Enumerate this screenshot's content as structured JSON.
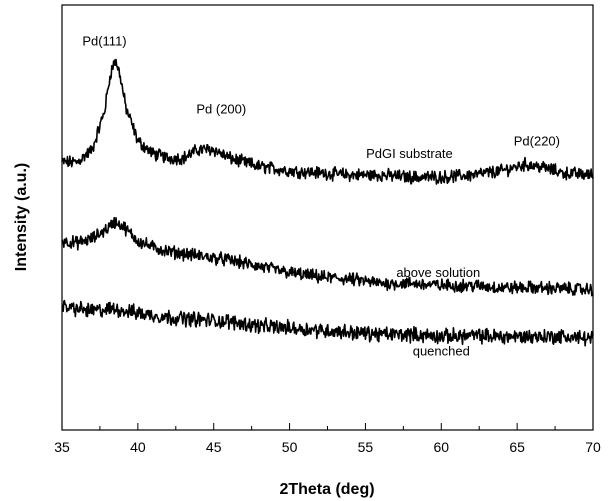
{
  "chart_data": {
    "type": "line",
    "title": "",
    "xlabel": "2Theta (deg)",
    "ylabel": "Intensity (a.u.)",
    "xlim": [
      35,
      70
    ],
    "ylim": [
      0,
      1
    ],
    "x_ticks": [
      35,
      40,
      45,
      50,
      55,
      60,
      65,
      70
    ],
    "y_ticks": [],
    "grid": false,
    "legend": "none",
    "line_color": "#000000",
    "series": [
      {
        "name": "PdGI substrate",
        "points": [
          [
            35,
            0.63
          ],
          [
            36,
            0.63
          ],
          [
            37,
            0.66
          ],
          [
            37.8,
            0.75
          ],
          [
            38.2,
            0.84
          ],
          [
            38.5,
            0.87
          ],
          [
            38.8,
            0.84
          ],
          [
            39.2,
            0.76
          ],
          [
            40,
            0.68
          ],
          [
            41,
            0.65
          ],
          [
            42,
            0.64
          ],
          [
            43,
            0.64
          ],
          [
            44,
            0.66
          ],
          [
            45,
            0.66
          ],
          [
            46,
            0.64
          ],
          [
            48,
            0.62
          ],
          [
            50,
            0.61
          ],
          [
            52,
            0.605
          ],
          [
            54,
            0.6
          ],
          [
            56,
            0.6
          ],
          [
            58,
            0.595
          ],
          [
            60,
            0.595
          ],
          [
            62,
            0.6
          ],
          [
            64,
            0.61
          ],
          [
            65.5,
            0.625
          ],
          [
            66.5,
            0.62
          ],
          [
            68,
            0.605
          ],
          [
            70,
            0.6
          ]
        ],
        "noise": 0.012
      },
      {
        "name": "above solution",
        "points": [
          [
            35,
            0.445
          ],
          [
            36,
            0.44
          ],
          [
            37,
            0.45
          ],
          [
            38,
            0.475
          ],
          [
            38.5,
            0.49
          ],
          [
            39,
            0.48
          ],
          [
            40,
            0.445
          ],
          [
            41,
            0.43
          ],
          [
            42,
            0.42
          ],
          [
            44,
            0.41
          ],
          [
            46,
            0.4
          ],
          [
            48,
            0.385
          ],
          [
            50,
            0.37
          ],
          [
            52,
            0.36
          ],
          [
            54,
            0.355
          ],
          [
            56,
            0.345
          ],
          [
            58,
            0.345
          ],
          [
            60,
            0.34
          ],
          [
            62,
            0.34
          ],
          [
            64,
            0.335
          ],
          [
            66,
            0.335
          ],
          [
            68,
            0.333
          ],
          [
            70,
            0.33
          ]
        ],
        "noise": 0.012
      },
      {
        "name": "quenched",
        "points": [
          [
            35,
            0.29
          ],
          [
            37,
            0.28
          ],
          [
            38.5,
            0.285
          ],
          [
            40,
            0.275
          ],
          [
            42,
            0.265
          ],
          [
            44,
            0.26
          ],
          [
            46,
            0.255
          ],
          [
            48,
            0.245
          ],
          [
            50,
            0.24
          ],
          [
            52,
            0.235
          ],
          [
            54,
            0.23
          ],
          [
            56,
            0.225
          ],
          [
            58,
            0.225
          ],
          [
            60,
            0.22
          ],
          [
            62,
            0.222
          ],
          [
            64,
            0.22
          ],
          [
            66,
            0.22
          ],
          [
            68,
            0.22
          ],
          [
            70,
            0.215
          ]
        ],
        "noise": 0.014
      }
    ],
    "annotations": [
      {
        "text": "Pd(111)",
        "x": 37.8,
        "y": 0.905
      },
      {
        "text": "Pd (200)",
        "x": 45.5,
        "y": 0.745
      },
      {
        "text": "PdGI substrate",
        "x": 57.9,
        "y": 0.64
      },
      {
        "text": "Pd(220)",
        "x": 66.3,
        "y": 0.67
      },
      {
        "text": "above solution",
        "x": 59.8,
        "y": 0.36
      },
      {
        "text": "quenched",
        "x": 60,
        "y": 0.175
      }
    ]
  }
}
